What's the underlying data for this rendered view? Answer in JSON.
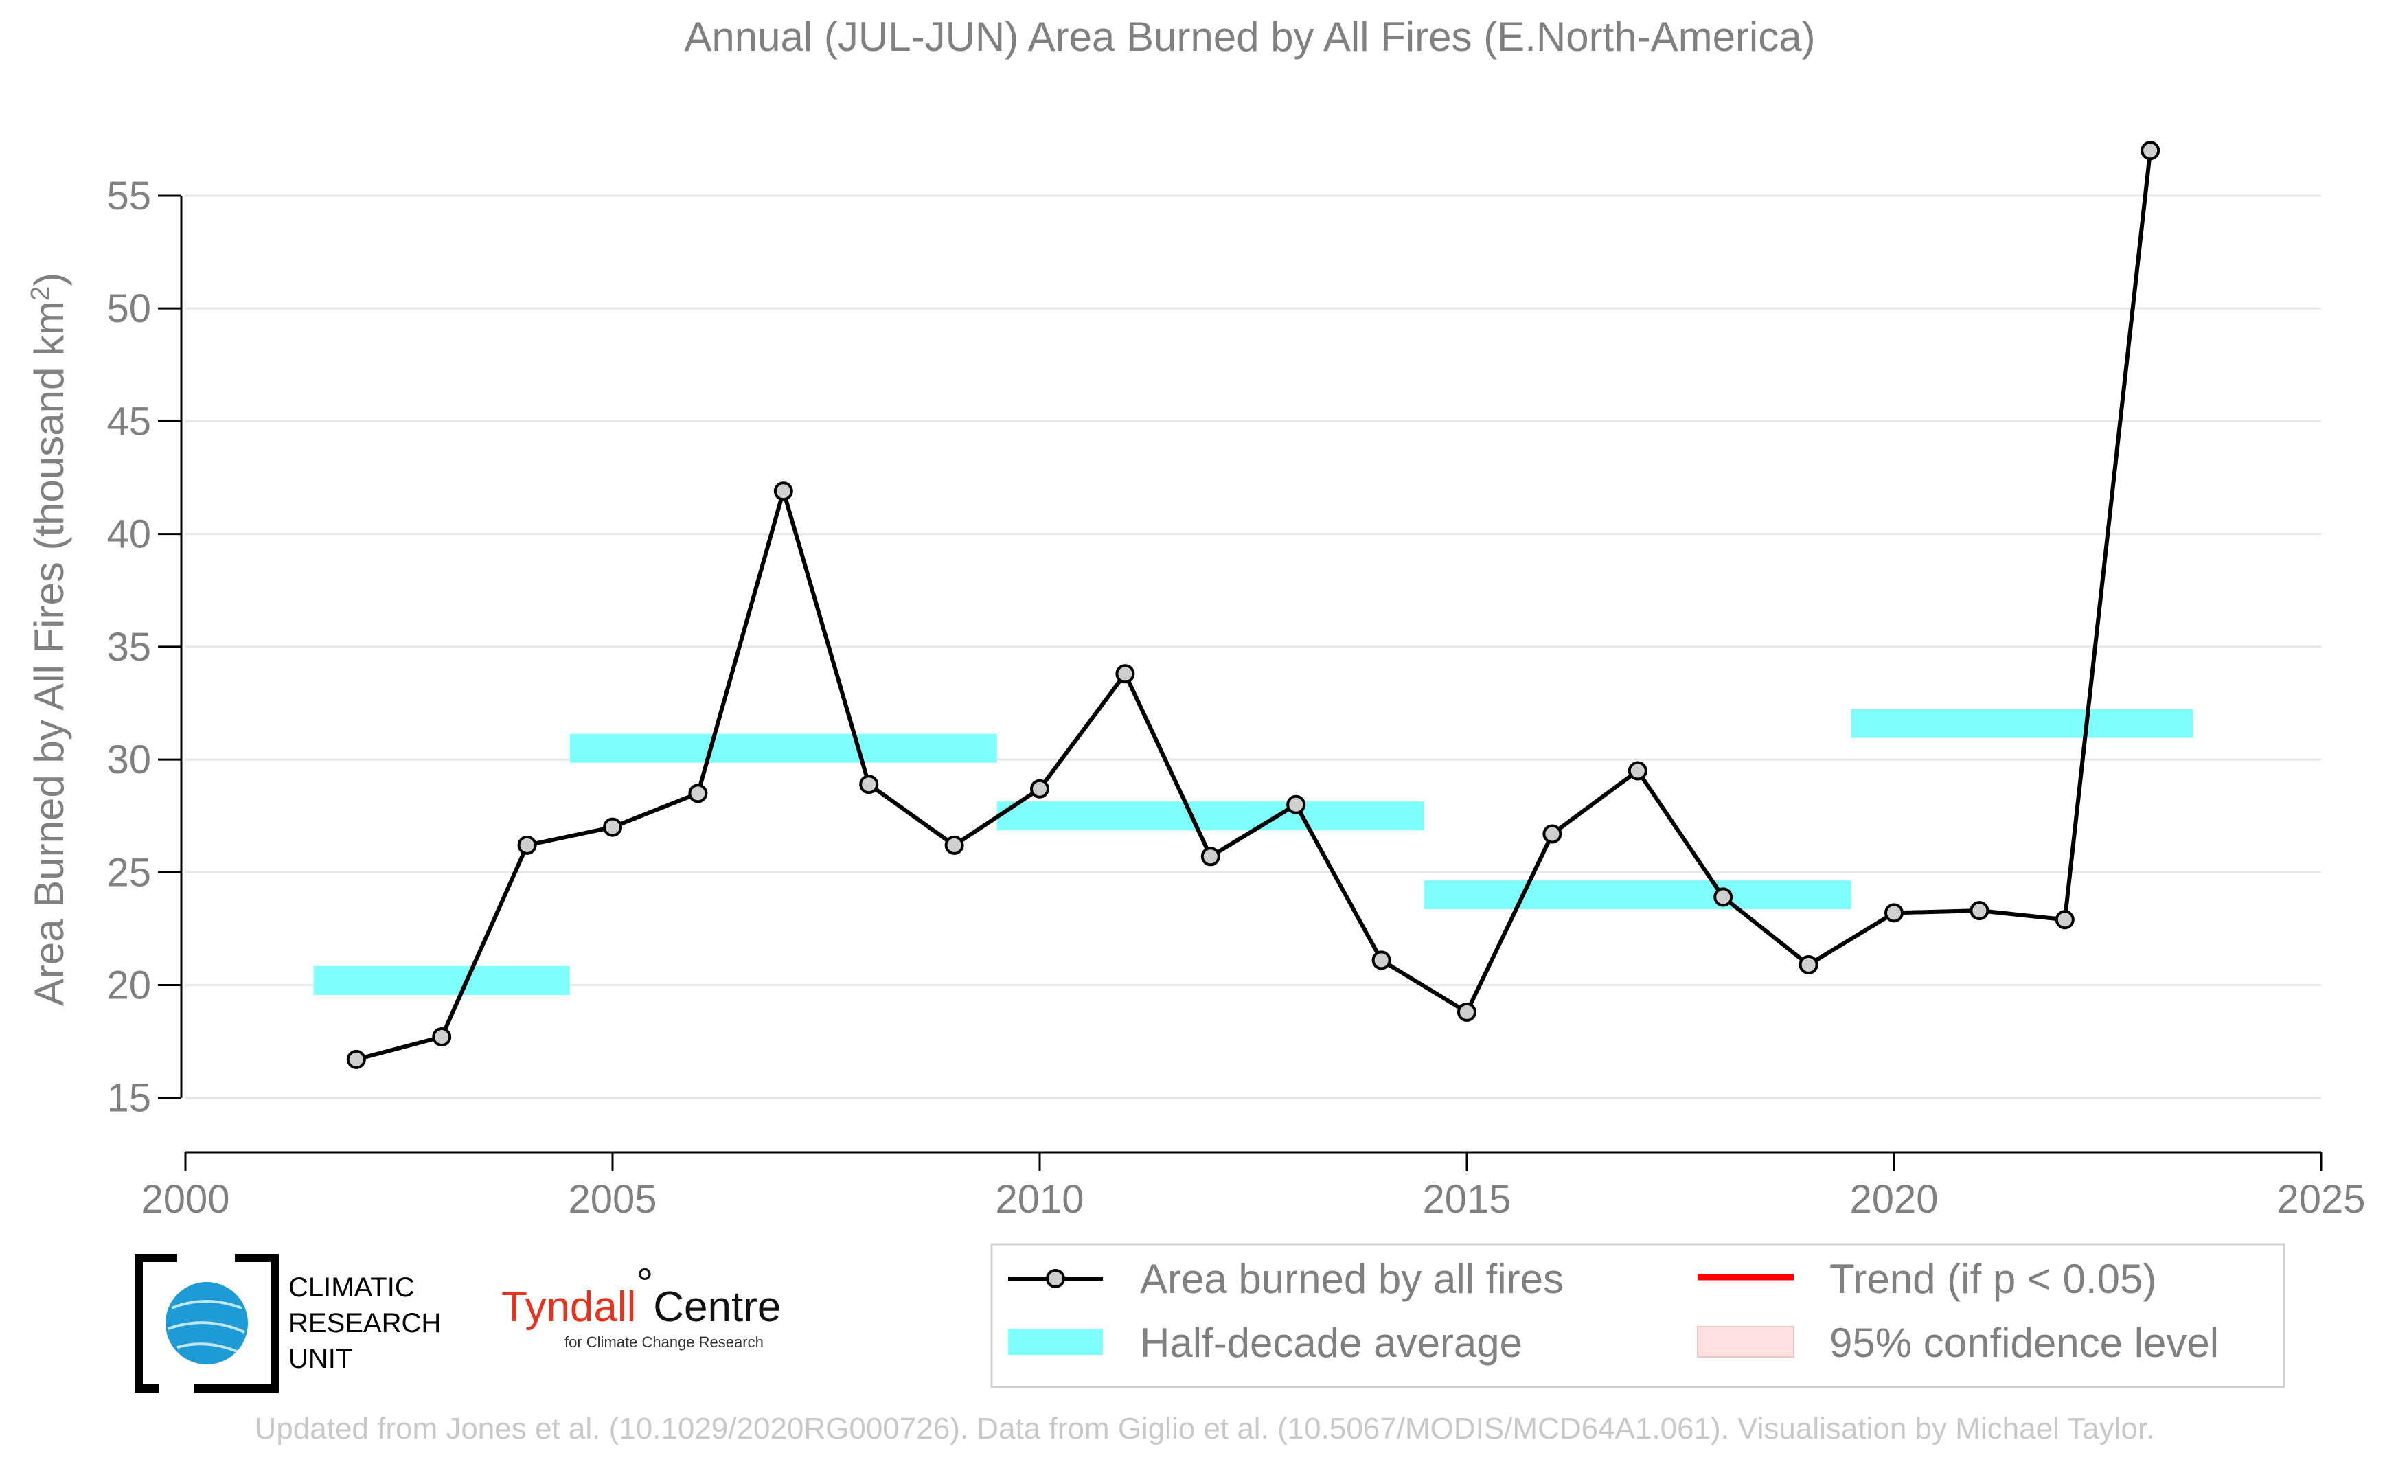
{
  "chart_data": {
    "type": "line",
    "title": "Annual (JUL-JUN) Area Burned by All Fires (E.North-America)",
    "ylabel_main": "Area Burned by All Fires (thousand km",
    "ylabel_sup": "2",
    "ylabel_close": ")",
    "xlabel": "",
    "xlim": [
      2000,
      2025
    ],
    "ylim": [
      13.5,
      58.5
    ],
    "x_ticks": [
      2000,
      2005,
      2010,
      2015,
      2020,
      2025
    ],
    "y_ticks": [
      15,
      20,
      25,
      30,
      35,
      40,
      45,
      50,
      55
    ],
    "grid": true,
    "series": [
      {
        "name": "Area burned by all fires",
        "type": "line-marker",
        "color": "#000000",
        "marker_fill": "#cfcfcf",
        "x": [
          2002,
          2003,
          2004,
          2005,
          2006,
          2007,
          2008,
          2009,
          2010,
          2011,
          2012,
          2013,
          2014,
          2015,
          2016,
          2017,
          2018,
          2019,
          2020,
          2021,
          2022,
          2023
        ],
        "y": [
          16.7,
          17.7,
          26.2,
          27.0,
          28.5,
          41.9,
          28.9,
          26.2,
          28.7,
          33.8,
          25.7,
          28.0,
          21.1,
          18.8,
          26.7,
          29.5,
          23.9,
          20.9,
          23.2,
          23.3,
          22.9,
          57.0
        ]
      },
      {
        "name": "Half-decade average",
        "type": "band",
        "color": "#7ffcfc",
        "segments": [
          {
            "x0": 2001.5,
            "x1": 2004.5,
            "y": 20.2
          },
          {
            "x0": 2004.5,
            "x1": 2009.5,
            "y": 30.5
          },
          {
            "x0": 2009.5,
            "x1": 2014.5,
            "y": 27.5
          },
          {
            "x0": 2014.5,
            "x1": 2019.5,
            "y": 24.0
          },
          {
            "x0": 2019.5,
            "x1": 2023.5,
            "y": 31.6
          }
        ]
      }
    ],
    "legend": [
      {
        "label": "Area burned by all fires",
        "kind": "line-marker",
        "color": "#000000"
      },
      {
        "label": "Trend (if p < 0.05)",
        "kind": "line",
        "color": "#ff0000"
      },
      {
        "label": "Half-decade average",
        "kind": "band",
        "color": "#7ffcfc"
      },
      {
        "label": "95% confidence level",
        "kind": "band",
        "color": "#fde0e0"
      }
    ],
    "legend_position": "bottom-right"
  },
  "logos": {
    "cru_lines": [
      "CLIMATIC",
      "RESEARCH",
      "UNIT"
    ],
    "tyndall_name": "Tyndall",
    "tyndall_degree": "°",
    "tyndall_centre": "Centre",
    "tyndall_sub": "for Climate Change Research"
  },
  "footer": "Updated from Jones et al. (10.1029/2020RG000726). Data from Giglio et al. (10.5067/MODIS/MCD64A1.061). Visualisation by Michael Taylor."
}
